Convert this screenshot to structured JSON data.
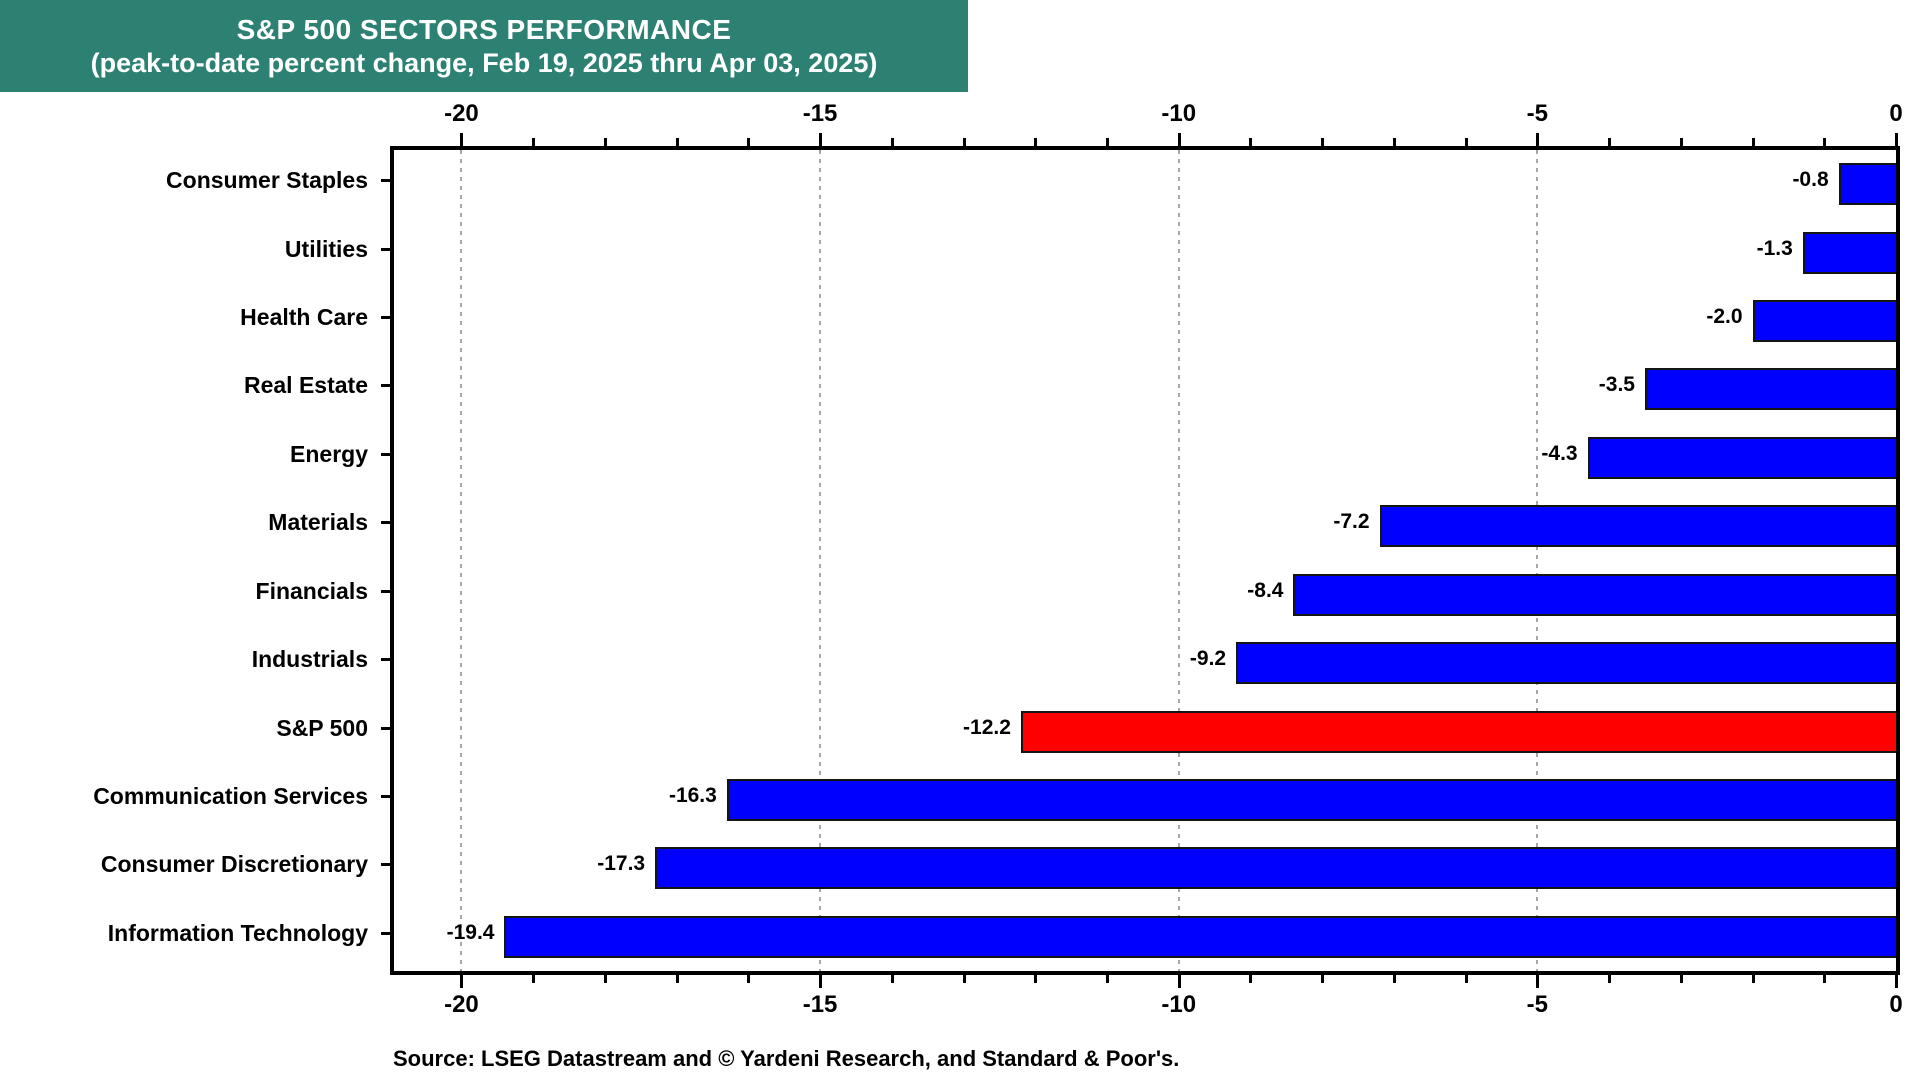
{
  "title": {
    "line1": "S&P 500 SECTORS PERFORMANCE",
    "line2": "(peak-to-date percent change, Feb 19, 2025 thru Apr 03, 2025)",
    "bg_color": "#2D8173",
    "text_color": "#FFFFFF"
  },
  "source": "Source: LSEG Datastream and © Yardeni Research, and Standard & Poor's.",
  "chart_data": {
    "type": "bar",
    "orientation": "horizontal",
    "categories": [
      "Consumer Staples",
      "Utilities",
      "Health Care",
      "Real Estate",
      "Energy",
      "Materials",
      "Financials",
      "Industrials",
      "S&P 500",
      "Communication Services",
      "Consumer Discretionary",
      "Information Technology"
    ],
    "values": [
      -0.8,
      -1.3,
      -2.0,
      -3.5,
      -4.3,
      -7.2,
      -8.4,
      -9.2,
      -12.2,
      -16.3,
      -17.3,
      -19.4
    ],
    "value_labels": [
      "-0.8",
      "-1.3",
      "-2.0",
      "-3.5",
      "-4.3",
      "-7.2",
      "-8.4",
      "-9.2",
      "-12.2",
      "-16.3",
      "-17.3",
      "-19.4"
    ],
    "highlight_category": "S&P 500",
    "bar_color": "#0000FF",
    "highlight_color": "#FF0000",
    "bar_edge_color": "#141414",
    "xlim": [
      -20.94,
      0
    ],
    "x_major_ticks": [
      -20,
      -15,
      -10,
      -5,
      0
    ],
    "x_major_tick_labels": [
      "-20",
      "-15",
      "-10",
      "-5",
      "0"
    ],
    "x_minor_tick_step": 1,
    "gridlines_at": [
      -20,
      -15,
      -10,
      -5
    ],
    "grid_color": "#A6A6A6",
    "grid_style": "dotted",
    "legend": "none",
    "xlabel": "",
    "ylabel": ""
  }
}
